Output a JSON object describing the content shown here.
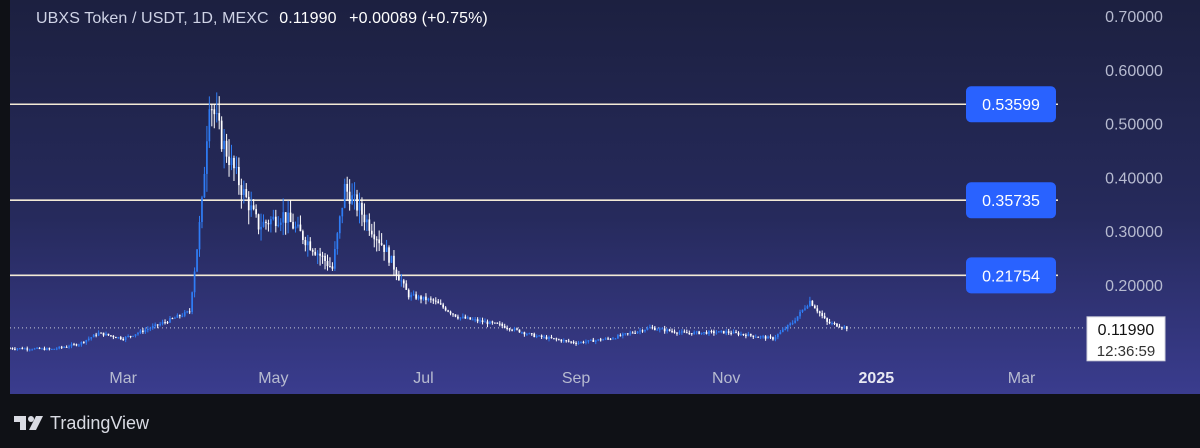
{
  "header": {
    "symbol_line": "UBXS Token / USDT, 1D, MEXC",
    "last": "0.11990",
    "change": "+0.00089 (+0.75%)"
  },
  "footer": {
    "brand": "TradingView"
  },
  "colors": {
    "up": "#2f7df6",
    "down": "#ffffff",
    "level_line": "#f3ead6",
    "badge": "#2962ff"
  },
  "chart_data": {
    "type": "candlestick",
    "title": "UBXS Token / USDT, 1D, MEXC",
    "x_axis": {
      "ticks": [
        "Mar",
        "May",
        "Jul",
        "Sep",
        "Nov",
        "2025",
        "Mar"
      ],
      "tick_dates": [
        "2024-03-01",
        "2024-05-01",
        "2024-07-01",
        "2024-09-01",
        "2024-11-01",
        "2025-01-01",
        "2025-03-01"
      ],
      "range": [
        "2024-01-15",
        "2025-03-28"
      ]
    },
    "y_axis": {
      "ticks": [
        "0.70000",
        "0.60000",
        "0.50000",
        "0.40000",
        "0.30000",
        "0.20000"
      ],
      "range": [
        0.06,
        0.73
      ]
    },
    "horizontal_levels": [
      "0.53599",
      "0.35735",
      "0.21754"
    ],
    "current_price": {
      "value": "0.11990",
      "countdown": "12:36:59"
    },
    "price_path": [
      {
        "date": "2024-01-15",
        "value": 0.082
      },
      {
        "date": "2024-02-01",
        "value": 0.08
      },
      {
        "date": "2024-02-12",
        "value": 0.09
      },
      {
        "date": "2024-02-20",
        "value": 0.11
      },
      {
        "date": "2024-03-01",
        "value": 0.1
      },
      {
        "date": "2024-03-15",
        "value": 0.125
      },
      {
        "date": "2024-03-28",
        "value": 0.15
      },
      {
        "date": "2024-04-02",
        "value": 0.35
      },
      {
        "date": "2024-04-05",
        "value": 0.55
      },
      {
        "date": "2024-04-10",
        "value": 0.47
      },
      {
        "date": "2024-04-18",
        "value": 0.38
      },
      {
        "date": "2024-04-25",
        "value": 0.31
      },
      {
        "date": "2024-05-05",
        "value": 0.33
      },
      {
        "date": "2024-05-15",
        "value": 0.28
      },
      {
        "date": "2024-05-25",
        "value": 0.23
      },
      {
        "date": "2024-05-30",
        "value": 0.38
      },
      {
        "date": "2024-06-05",
        "value": 0.34
      },
      {
        "date": "2024-06-15",
        "value": 0.27
      },
      {
        "date": "2024-06-25",
        "value": 0.18
      },
      {
        "date": "2024-07-05",
        "value": 0.17
      },
      {
        "date": "2024-07-15",
        "value": 0.14
      },
      {
        "date": "2024-08-01",
        "value": 0.125
      },
      {
        "date": "2024-08-15",
        "value": 0.105
      },
      {
        "date": "2024-09-01",
        "value": 0.092
      },
      {
        "date": "2024-09-15",
        "value": 0.1
      },
      {
        "date": "2024-10-01",
        "value": 0.12
      },
      {
        "date": "2024-10-15",
        "value": 0.11
      },
      {
        "date": "2024-11-01",
        "value": 0.112
      },
      {
        "date": "2024-11-20",
        "value": 0.1
      },
      {
        "date": "2024-11-28",
        "value": 0.13
      },
      {
        "date": "2024-12-05",
        "value": 0.17
      },
      {
        "date": "2024-12-12",
        "value": 0.13
      },
      {
        "date": "2024-12-20",
        "value": 0.12
      }
    ]
  }
}
